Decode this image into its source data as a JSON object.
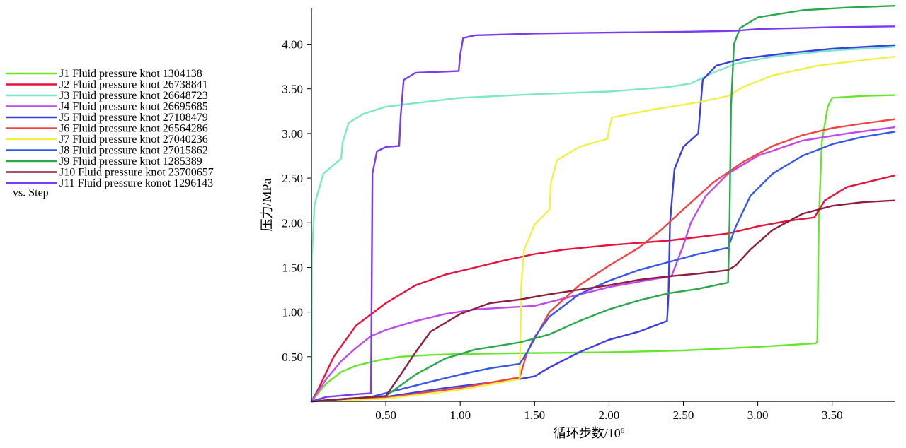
{
  "chart_data": {
    "type": "line",
    "title": "",
    "xlabel": "循环步数/10",
    "xlabel_superscript": "6",
    "ylabel": "压力/MPa",
    "xlim": [
      0,
      3.92
    ],
    "ylim": [
      0,
      4.4
    ],
    "xticks": [
      0.5,
      1.0,
      1.5,
      2.0,
      2.5,
      3.0,
      3.5
    ],
    "xtick_labels": [
      "0.50",
      "1.00",
      "1.50",
      "2.00",
      "2.50",
      "3.00",
      "3.50"
    ],
    "yticks": [
      0.5,
      1.0,
      1.5,
      2.0,
      2.5,
      3.0,
      3.5,
      4.0
    ],
    "ytick_labels": [
      "0.50",
      "1.00",
      "1.50",
      "2.00",
      "2.50",
      "3.00",
      "3.50",
      "4.00"
    ],
    "grid": false,
    "legend_position": "left",
    "legend_footer": "vs. Step",
    "series": [
      {
        "name": "J1 Fluid pressure knot 1304138",
        "color": "#66e62e",
        "points": [
          [
            0,
            0
          ],
          [
            0.1,
            0.2
          ],
          [
            0.2,
            0.33
          ],
          [
            0.3,
            0.4
          ],
          [
            0.45,
            0.46
          ],
          [
            0.6,
            0.5
          ],
          [
            0.8,
            0.52
          ],
          [
            1.0,
            0.53
          ],
          [
            1.4,
            0.54
          ],
          [
            2.0,
            0.55
          ],
          [
            2.5,
            0.57
          ],
          [
            3.0,
            0.61
          ],
          [
            3.39,
            0.65
          ],
          [
            3.4,
            0.67
          ],
          [
            3.41,
            2.0
          ],
          [
            3.43,
            2.9
          ],
          [
            3.47,
            3.3
          ],
          [
            3.5,
            3.4
          ],
          [
            3.7,
            3.42
          ],
          [
            3.92,
            3.43
          ]
        ]
      },
      {
        "name": "J2 Fluid pressure knot 26738841",
        "color": "#e8123c",
        "points": [
          [
            0,
            0
          ],
          [
            0.05,
            0.15
          ],
          [
            0.15,
            0.5
          ],
          [
            0.3,
            0.85
          ],
          [
            0.5,
            1.1
          ],
          [
            0.7,
            1.3
          ],
          [
            0.9,
            1.42
          ],
          [
            1.1,
            1.5
          ],
          [
            1.3,
            1.58
          ],
          [
            1.5,
            1.65
          ],
          [
            1.7,
            1.7
          ],
          [
            2.0,
            1.75
          ],
          [
            2.4,
            1.8
          ],
          [
            2.6,
            1.84
          ],
          [
            2.8,
            1.88
          ],
          [
            3.0,
            1.96
          ],
          [
            3.2,
            2.02
          ],
          [
            3.38,
            2.06
          ],
          [
            3.45,
            2.25
          ],
          [
            3.6,
            2.4
          ],
          [
            3.92,
            2.53
          ]
        ]
      },
      {
        "name": "J3 Fluid pressure knot 26648723",
        "color": "#7de8c7",
        "points": [
          [
            0,
            0
          ],
          [
            0.003,
            1.6
          ],
          [
            0.02,
            2.2
          ],
          [
            0.08,
            2.55
          ],
          [
            0.2,
            2.72
          ],
          [
            0.21,
            2.9
          ],
          [
            0.25,
            3.12
          ],
          [
            0.35,
            3.22
          ],
          [
            0.5,
            3.3
          ],
          [
            1.0,
            3.4
          ],
          [
            1.5,
            3.44
          ],
          [
            2.0,
            3.47
          ],
          [
            2.4,
            3.52
          ],
          [
            2.55,
            3.56
          ],
          [
            2.7,
            3.68
          ],
          [
            2.85,
            3.78
          ],
          [
            3.1,
            3.86
          ],
          [
            3.5,
            3.93
          ],
          [
            3.92,
            3.97
          ]
        ]
      },
      {
        "name": "J4 Fluid pressure knot 26695685",
        "color": "#bf49ea",
        "points": [
          [
            0,
            0
          ],
          [
            0.1,
            0.25
          ],
          [
            0.2,
            0.45
          ],
          [
            0.3,
            0.6
          ],
          [
            0.4,
            0.73
          ],
          [
            0.5,
            0.8
          ],
          [
            0.7,
            0.9
          ],
          [
            0.9,
            0.98
          ],
          [
            1.1,
            1.03
          ],
          [
            1.5,
            1.07
          ],
          [
            2.0,
            1.28
          ],
          [
            2.3,
            1.37
          ],
          [
            2.42,
            1.4
          ],
          [
            2.5,
            1.75
          ],
          [
            2.55,
            2.0
          ],
          [
            2.65,
            2.3
          ],
          [
            2.8,
            2.55
          ],
          [
            3.0,
            2.75
          ],
          [
            3.3,
            2.92
          ],
          [
            3.6,
            3.0
          ],
          [
            3.92,
            3.07
          ]
        ]
      },
      {
        "name": "J5 Fluid pressure knot 27108479",
        "color": "#3a3ee0",
        "points": [
          [
            0,
            0
          ],
          [
            0.5,
            0.05
          ],
          [
            0.9,
            0.15
          ],
          [
            1.4,
            0.25
          ],
          [
            1.5,
            0.28
          ],
          [
            1.6,
            0.38
          ],
          [
            1.8,
            0.55
          ],
          [
            2.0,
            0.69
          ],
          [
            2.2,
            0.78
          ],
          [
            2.39,
            0.9
          ],
          [
            2.4,
            1.2
          ],
          [
            2.41,
            2.0
          ],
          [
            2.44,
            2.6
          ],
          [
            2.5,
            2.85
          ],
          [
            2.6,
            3.0
          ],
          [
            2.61,
            3.2
          ],
          [
            2.63,
            3.6
          ],
          [
            2.72,
            3.76
          ],
          [
            2.9,
            3.84
          ],
          [
            3.2,
            3.9
          ],
          [
            3.5,
            3.95
          ],
          [
            3.92,
            3.99
          ]
        ]
      },
      {
        "name": "J6 Fluid pressure knot 26564286",
        "color": "#f24343",
        "points": [
          [
            0,
            0
          ],
          [
            0.5,
            0.04
          ],
          [
            1.0,
            0.15
          ],
          [
            1.4,
            0.27
          ],
          [
            1.45,
            0.55
          ],
          [
            1.5,
            0.7
          ],
          [
            1.6,
            1.0
          ],
          [
            1.8,
            1.3
          ],
          [
            2.0,
            1.52
          ],
          [
            2.2,
            1.72
          ],
          [
            2.35,
            1.92
          ],
          [
            2.5,
            2.15
          ],
          [
            2.7,
            2.45
          ],
          [
            2.9,
            2.68
          ],
          [
            3.1,
            2.86
          ],
          [
            3.3,
            2.98
          ],
          [
            3.5,
            3.06
          ],
          [
            3.7,
            3.11
          ],
          [
            3.92,
            3.16
          ]
        ]
      },
      {
        "name": "J7 Fluid pressure knot 27040236",
        "color": "#f0f04a",
        "points": [
          [
            0,
            0
          ],
          [
            0.5,
            0.03
          ],
          [
            1.0,
            0.13
          ],
          [
            1.4,
            0.25
          ],
          [
            1.41,
            1.3
          ],
          [
            1.43,
            1.7
          ],
          [
            1.5,
            1.98
          ],
          [
            1.6,
            2.15
          ],
          [
            1.61,
            2.45
          ],
          [
            1.65,
            2.7
          ],
          [
            1.8,
            2.85
          ],
          [
            1.99,
            2.94
          ],
          [
            2.0,
            3.05
          ],
          [
            2.02,
            3.18
          ],
          [
            2.3,
            3.27
          ],
          [
            2.6,
            3.35
          ],
          [
            2.8,
            3.42
          ],
          [
            2.9,
            3.52
          ],
          [
            3.1,
            3.65
          ],
          [
            3.4,
            3.76
          ],
          [
            3.7,
            3.82
          ],
          [
            3.92,
            3.86
          ]
        ]
      },
      {
        "name": "J8 Fluid pressure knot 27015862",
        "color": "#3557ee",
        "points": [
          [
            0,
            0
          ],
          [
            0.4,
            0.05
          ],
          [
            0.8,
            0.22
          ],
          [
            1.0,
            0.3
          ],
          [
            1.2,
            0.37
          ],
          [
            1.4,
            0.42
          ],
          [
            1.45,
            0.55
          ],
          [
            1.5,
            0.72
          ],
          [
            1.6,
            0.95
          ],
          [
            1.8,
            1.2
          ],
          [
            2.0,
            1.35
          ],
          [
            2.2,
            1.47
          ],
          [
            2.4,
            1.56
          ],
          [
            2.6,
            1.65
          ],
          [
            2.8,
            1.72
          ],
          [
            2.85,
            1.95
          ],
          [
            2.95,
            2.3
          ],
          [
            3.1,
            2.55
          ],
          [
            3.3,
            2.75
          ],
          [
            3.5,
            2.88
          ],
          [
            3.7,
            2.96
          ],
          [
            3.92,
            3.02
          ]
        ]
      },
      {
        "name": "J9 Fluid pressure knot 1285389",
        "color": "#29a84c",
        "points": [
          [
            0,
            0
          ],
          [
            0.5,
            0.06
          ],
          [
            0.7,
            0.3
          ],
          [
            0.9,
            0.48
          ],
          [
            1.1,
            0.58
          ],
          [
            1.4,
            0.66
          ],
          [
            1.6,
            0.75
          ],
          [
            1.8,
            0.9
          ],
          [
            2.0,
            1.03
          ],
          [
            2.2,
            1.13
          ],
          [
            2.4,
            1.21
          ],
          [
            2.6,
            1.26
          ],
          [
            2.8,
            1.33
          ],
          [
            2.81,
            2.0
          ],
          [
            2.82,
            3.3
          ],
          [
            2.84,
            4.0
          ],
          [
            2.88,
            4.18
          ],
          [
            3.0,
            4.3
          ],
          [
            3.3,
            4.38
          ],
          [
            3.6,
            4.41
          ],
          [
            3.92,
            4.43
          ]
        ]
      },
      {
        "name": "J10 Fluid pressure knot 23700657",
        "color": "#8e1d3e",
        "points": [
          [
            0,
            0
          ],
          [
            0.5,
            0.06
          ],
          [
            0.6,
            0.3
          ],
          [
            0.7,
            0.55
          ],
          [
            0.8,
            0.78
          ],
          [
            1.0,
            0.98
          ],
          [
            1.2,
            1.1
          ],
          [
            1.4,
            1.14
          ],
          [
            1.6,
            1.2
          ],
          [
            1.8,
            1.25
          ],
          [
            2.0,
            1.3
          ],
          [
            2.2,
            1.36
          ],
          [
            2.4,
            1.4
          ],
          [
            2.6,
            1.43
          ],
          [
            2.8,
            1.47
          ],
          [
            2.85,
            1.52
          ],
          [
            2.95,
            1.7
          ],
          [
            3.1,
            1.92
          ],
          [
            3.3,
            2.1
          ],
          [
            3.5,
            2.19
          ],
          [
            3.7,
            2.23
          ],
          [
            3.92,
            2.25
          ]
        ]
      },
      {
        "name": "J11 Fluid pressure konot 1296143",
        "color": "#7b3bef",
        "points": [
          [
            0,
            0
          ],
          [
            0.1,
            0.05
          ],
          [
            0.3,
            0.08
          ],
          [
            0.4,
            0.09
          ],
          [
            0.41,
            2.55
          ],
          [
            0.44,
            2.8
          ],
          [
            0.5,
            2.85
          ],
          [
            0.59,
            2.86
          ],
          [
            0.6,
            3.2
          ],
          [
            0.62,
            3.6
          ],
          [
            0.7,
            3.68
          ],
          [
            0.99,
            3.7
          ],
          [
            1.0,
            3.88
          ],
          [
            1.02,
            4.07
          ],
          [
            1.1,
            4.1
          ],
          [
            1.5,
            4.12
          ],
          [
            2.0,
            4.13
          ],
          [
            2.5,
            4.14
          ],
          [
            2.85,
            4.15
          ],
          [
            3.0,
            4.17
          ],
          [
            3.5,
            4.19
          ],
          [
            3.92,
            4.2
          ]
        ]
      }
    ]
  }
}
